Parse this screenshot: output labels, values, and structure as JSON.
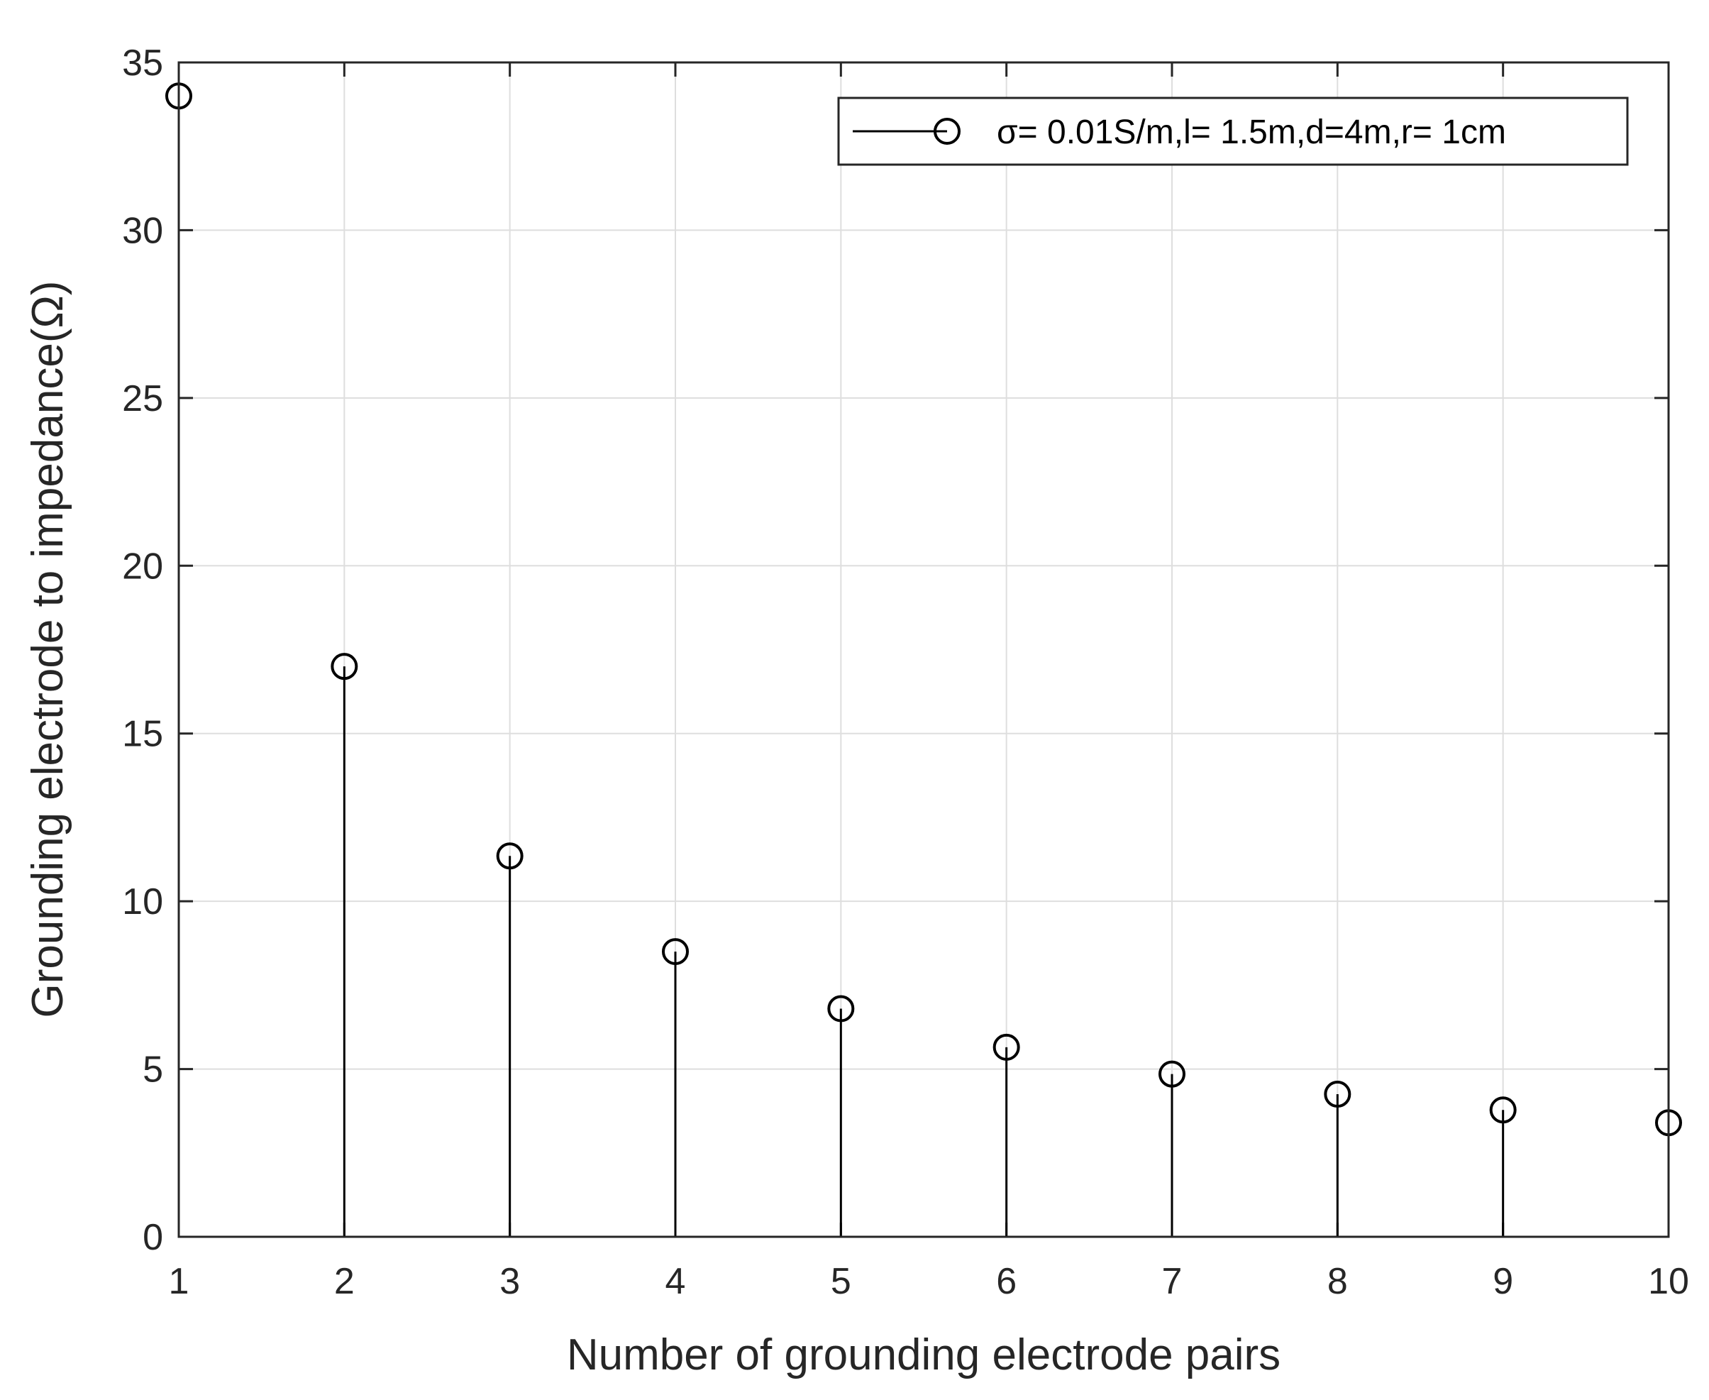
{
  "chart_data": {
    "type": "stem",
    "title": "",
    "xlabel": "Number of grounding electrode pairs",
    "ylabel": "Grounding electrode to impedance(Ω)",
    "xlim": [
      1,
      10
    ],
    "ylim": [
      0,
      35
    ],
    "xticks": [
      "1",
      "2",
      "3",
      "4",
      "5",
      "6",
      "7",
      "8",
      "9",
      "10"
    ],
    "yticks": [
      "0",
      "5",
      "10",
      "15",
      "20",
      "25",
      "30",
      "35"
    ],
    "grid": true,
    "legend_position": "top-right",
    "series": [
      {
        "name": "σ= 0.01S/m,l= 1.5m,d=4m,r= 1cm",
        "color": "#000000",
        "marker": "circle",
        "x": [
          1,
          2,
          3,
          4,
          5,
          6,
          7,
          8,
          9,
          10
        ],
        "y": [
          34.0,
          17.0,
          11.35,
          8.5,
          6.8,
          5.65,
          4.85,
          4.25,
          3.78,
          3.4
        ]
      }
    ]
  }
}
